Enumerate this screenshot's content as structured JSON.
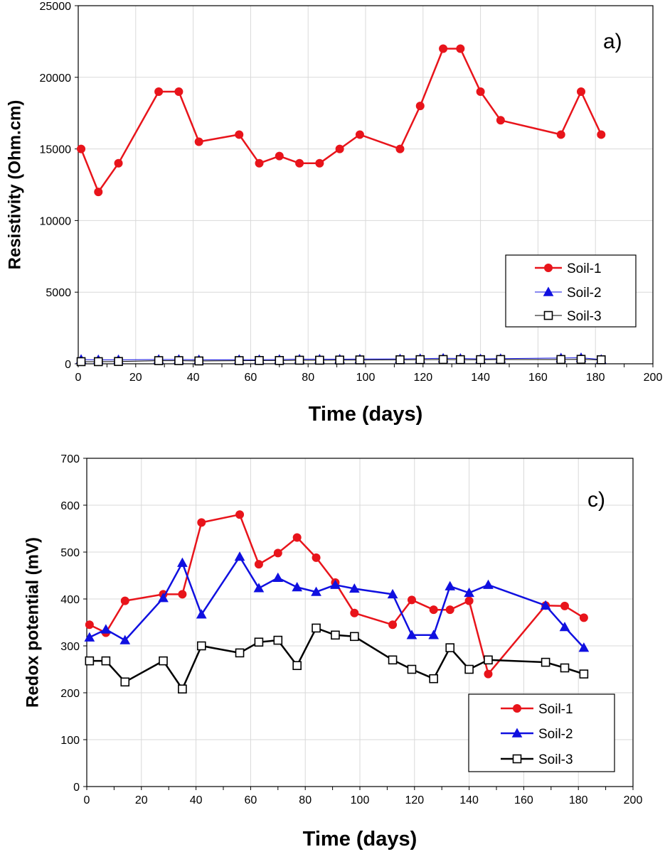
{
  "chart_data": [
    {
      "type": "line",
      "panel_label": "a)",
      "xlabel": "Time (days)",
      "ylabel": "Resistivity (Ohm.cm)",
      "xlim": [
        0,
        200
      ],
      "ylim": [
        0,
        25000
      ],
      "xticks": [
        0,
        20,
        40,
        60,
        80,
        100,
        120,
        140,
        160,
        180,
        200
      ],
      "yticks": [
        0,
        5000,
        10000,
        15000,
        20000,
        25000
      ],
      "grid": true,
      "legend_position": "right",
      "series": [
        {
          "name": "Soil-1",
          "color": "#e8141b",
          "marker": "filled-circle",
          "x": [
            1,
            7,
            14,
            28,
            35,
            42,
            56,
            63,
            70,
            77,
            84,
            91,
            98,
            112,
            119,
            127,
            133,
            140,
            147,
            168,
            175,
            182
          ],
          "y": [
            15000,
            12000,
            14000,
            19000,
            19000,
            15500,
            16000,
            14000,
            14500,
            14000,
            14000,
            15000,
            16000,
            15000,
            18000,
            22000,
            22000,
            19000,
            17000,
            16000,
            19000,
            16000
          ]
        },
        {
          "name": "Soil-2",
          "color": "#1010e0",
          "marker": "filled-triangle",
          "x": [
            1,
            7,
            14,
            28,
            35,
            42,
            56,
            63,
            70,
            77,
            84,
            91,
            98,
            112,
            119,
            127,
            133,
            140,
            147,
            168,
            175,
            182
          ],
          "y": [
            300,
            280,
            280,
            300,
            300,
            280,
            290,
            290,
            300,
            320,
            320,
            320,
            330,
            340,
            360,
            380,
            370,
            340,
            360,
            400,
            420,
            300
          ]
        },
        {
          "name": "Soil-3",
          "color": "#000000",
          "marker": "open-square",
          "x": [
            1,
            7,
            14,
            28,
            35,
            42,
            56,
            63,
            70,
            77,
            84,
            91,
            98,
            112,
            119,
            127,
            133,
            140,
            147,
            168,
            175,
            182
          ],
          "y": [
            150,
            150,
            160,
            220,
            220,
            200,
            220,
            230,
            230,
            250,
            250,
            260,
            270,
            280,
            290,
            300,
            290,
            290,
            300,
            300,
            310,
            280
          ]
        }
      ]
    },
    {
      "type": "line",
      "panel_label": "c)",
      "xlabel": "Time (days)",
      "ylabel": "Redox potential  (mV)",
      "xlim": [
        0,
        200
      ],
      "ylim": [
        0,
        700
      ],
      "xticks": [
        0,
        20,
        40,
        60,
        80,
        100,
        120,
        140,
        160,
        180,
        200
      ],
      "yticks": [
        0,
        100,
        200,
        300,
        400,
        500,
        600,
        700
      ],
      "grid": true,
      "legend_position": "bottom-right",
      "series": [
        {
          "name": "Soil-1",
          "color": "#e8141b",
          "marker": "filled-circle",
          "x": [
            1,
            7,
            14,
            28,
            35,
            42,
            56,
            63,
            70,
            77,
            84,
            91,
            98,
            112,
            119,
            127,
            133,
            140,
            147,
            168,
            175,
            182
          ],
          "y": [
            345,
            328,
            396,
            410,
            410,
            563,
            580,
            474,
            498,
            531,
            488,
            435,
            370,
            345,
            398,
            377,
            377,
            396,
            240,
            386,
            385,
            360
          ]
        },
        {
          "name": "Soil-2",
          "color": "#1010e0",
          "marker": "filled-triangle",
          "x": [
            1,
            7,
            14,
            28,
            35,
            42,
            56,
            63,
            70,
            77,
            84,
            91,
            98,
            112,
            119,
            127,
            133,
            140,
            147,
            168,
            175,
            182
          ],
          "y": [
            318,
            335,
            312,
            402,
            477,
            367,
            490,
            423,
            445,
            425,
            415,
            430,
            422,
            410,
            323,
            323,
            427,
            413,
            430,
            386,
            340,
            296
          ]
        },
        {
          "name": "Soil-3",
          "color": "#000000",
          "marker": "open-square",
          "x": [
            1,
            7,
            14,
            28,
            35,
            42,
            56,
            63,
            70,
            77,
            84,
            91,
            98,
            112,
            119,
            127,
            133,
            140,
            147,
            168,
            175,
            182
          ],
          "y": [
            268,
            268,
            223,
            268,
            208,
            300,
            285,
            308,
            312,
            258,
            338,
            323,
            320,
            270,
            250,
            230,
            296,
            250,
            270,
            265,
            253,
            240
          ]
        }
      ]
    }
  ]
}
